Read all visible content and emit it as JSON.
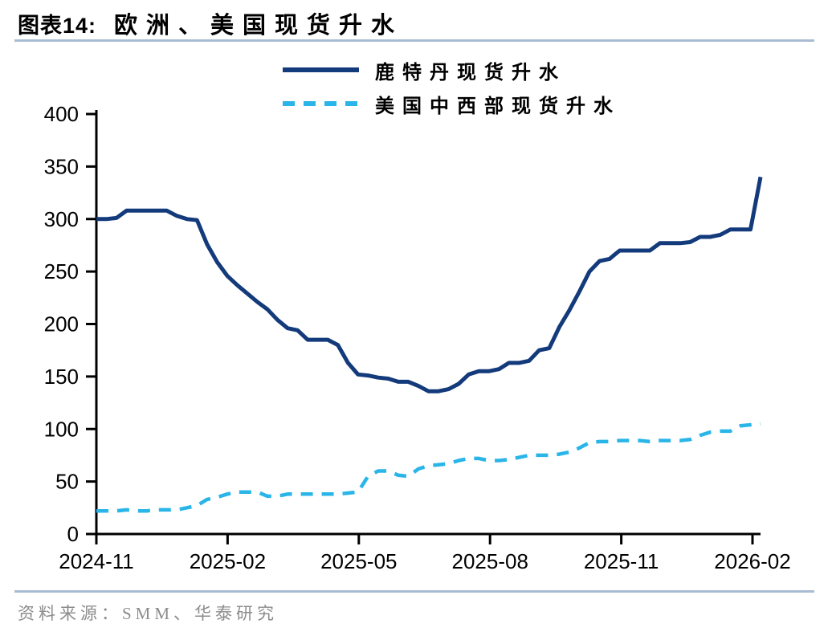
{
  "header": {
    "figure_label": "图表14:",
    "title": "欧洲、美国现货升水"
  },
  "legend": {
    "items": [
      {
        "label": "鹿特丹现货升水",
        "color": "#133a7a",
        "line_style": "solid"
      },
      {
        "label": "美国中西部现货升水",
        "color": "#29b5e8",
        "line_style": "dashed"
      }
    ]
  },
  "chart_data": {
    "type": "line",
    "title": "欧洲、美国现货升水",
    "x_frequency": "weekly",
    "x_tick_labels": [
      "2024-11",
      "2025-02",
      "2025-05",
      "2025-08",
      "2025-11",
      "2026-02"
    ],
    "ylim": [
      0,
      400
    ],
    "y_tick_step": 50,
    "grid": false,
    "legend_position": "top-center",
    "series": [
      {
        "name": "鹿特丹现货升水",
        "color": "#133a7a",
        "style": "solid",
        "values": [
          300,
          300,
          301,
          308,
          308,
          308,
          308,
          308,
          303,
          300,
          299,
          276,
          259,
          246,
          237,
          229,
          221,
          214,
          204,
          196,
          194,
          185,
          185,
          185,
          180,
          163,
          152,
          151,
          149,
          148,
          145,
          145,
          141,
          136,
          136,
          138,
          143,
          152,
          155,
          155,
          157,
          163,
          163,
          165,
          175,
          177,
          197,
          213,
          231,
          250,
          260,
          262,
          270,
          270,
          270,
          270,
          277,
          277,
          277,
          278,
          283,
          283,
          285,
          290,
          290,
          290,
          340
        ]
      },
      {
        "name": "美国中西部现货升水",
        "color": "#29b5e8",
        "style": "dashed",
        "values": [
          22,
          22,
          22,
          23,
          22,
          22,
          23,
          23,
          23,
          25,
          27,
          33,
          35,
          38,
          40,
          40,
          40,
          36,
          36,
          38,
          38,
          38,
          38,
          38,
          38,
          39,
          40,
          55,
          60,
          60,
          56,
          55,
          62,
          65,
          66,
          67,
          70,
          72,
          72,
          70,
          70,
          71,
          73,
          75,
          75,
          75,
          76,
          78,
          82,
          87,
          88,
          88,
          89,
          89,
          89,
          88,
          89,
          89,
          89,
          90,
          94,
          97,
          98,
          98,
          103,
          104,
          105
        ]
      }
    ]
  },
  "footer": {
    "source": "资料来源：SMM、华泰研究"
  },
  "theme": {
    "divider_color": "#a8bcd2",
    "axis_color": "#000000",
    "source_text_color": "#8c8c8c"
  }
}
